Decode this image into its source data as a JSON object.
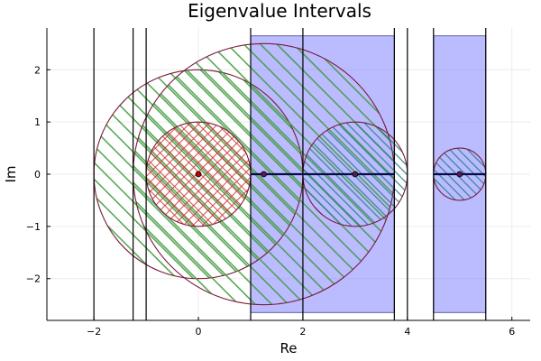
{
  "chart_data": {
    "type": "scatter",
    "title": "Eigenvalue Intervals",
    "xlabel": "Re",
    "ylabel": "Im",
    "xlim": [
      -2.9,
      6.35
    ],
    "ylim": [
      -2.8,
      2.8
    ],
    "x_ticks": [
      -2,
      0,
      2,
      4,
      6
    ],
    "x_tick_labels": [
      "−2",
      "0",
      "2",
      "4",
      "6"
    ],
    "y_ticks": [
      -2,
      -1,
      0,
      1,
      2
    ],
    "y_tick_labels": [
      "−2",
      "−1",
      "0",
      "1",
      "2"
    ],
    "grid": true,
    "legend": "none",
    "shaded_intervals": [
      {
        "x0": 1,
        "x1": 3.75,
        "y0": -2.65,
        "y1": 2.65
      },
      {
        "x0": 4.5,
        "x1": 5.5,
        "y0": -2.65,
        "y1": 2.65
      }
    ],
    "vertical_lines": [
      -2,
      -1.25,
      -1,
      1,
      2,
      3.75,
      4,
      4.5,
      5.5
    ],
    "real_intervals": [
      {
        "x0": 1,
        "x1": 3.75
      },
      {
        "x0": 4.5,
        "x1": 5.5
      }
    ],
    "discs": [
      {
        "cx": 0,
        "cy": 0,
        "r": 2,
        "hatch": "green"
      },
      {
        "cx": 1.25,
        "cy": 0,
        "r": 2.5,
        "hatch": "green"
      },
      {
        "cx": 0,
        "cy": 0,
        "r": 1,
        "hatch": "red-cross"
      },
      {
        "cx": 3,
        "cy": 0,
        "r": 1,
        "hatch": "teal"
      },
      {
        "cx": 5,
        "cy": 0,
        "r": 0.5,
        "hatch": "teal"
      }
    ],
    "points": [
      {
        "x": 0,
        "y": 0,
        "color": "red"
      },
      {
        "x": 1.25,
        "y": 0,
        "color": "purple"
      },
      {
        "x": 3,
        "y": 0,
        "color": "purple"
      },
      {
        "x": 5,
        "y": 0,
        "color": "purple"
      }
    ],
    "colors": {
      "band_fill": "#7777ff",
      "band_stroke": "#6060a0",
      "hatch_green": "#3e9a3e",
      "hatch_red": "#d23a3a",
      "hatch_teal": "#2a7f8a",
      "circle_stroke": "#7a1a3a",
      "vline": "#000000",
      "interval_line": "#0a0a4a",
      "point_red": "#c00000",
      "point_purple": "#5a1a5a",
      "grid": "#ececec"
    }
  }
}
